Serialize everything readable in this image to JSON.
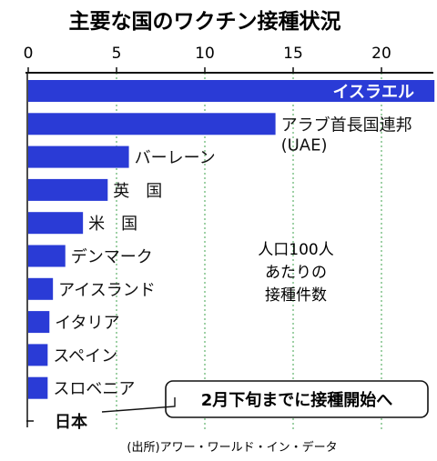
{
  "chart_data": {
    "type": "bar",
    "orientation": "horizontal",
    "title": "主要な国のワクチン接種状況",
    "xlim": [
      0,
      23
    ],
    "xticks": [
      0,
      5,
      10,
      15,
      20
    ],
    "grid": true,
    "categories": [
      "イスラエル",
      "アラブ首長国連邦\n(UAE)",
      "バーレーン",
      "英　国",
      "米　国",
      "デンマーク",
      "アイスランド",
      "イタリア",
      "スペイン",
      "スロベニア",
      "日本"
    ],
    "values": [
      23.0,
      14.0,
      5.7,
      4.5,
      3.1,
      2.1,
      1.4,
      1.2,
      1.1,
      1.1,
      0
    ],
    "bar_color": "#2a3bd6",
    "annotation": "人口100人\nあたりの\n接種件数",
    "callout": "2月下旬までに接種開始へ",
    "source": "(出所)アワー・ワールド・イン・データ"
  }
}
